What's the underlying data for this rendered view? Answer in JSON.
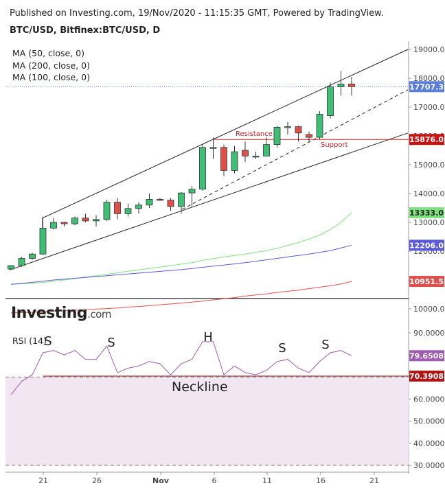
{
  "header": {
    "published": "Published on Investing.com, 19/Nov/2020 - 11:15:35 GMT, Powered by TradingView.",
    "symbol": "BTC/USD, Bitfinex:BTC/USD, D"
  },
  "indicators": {
    "ma50": "MA (50, close, 0)",
    "ma200": "MA (200, close, 0)",
    "ma100": "MA (100, close, 0)"
  },
  "logo": {
    "brand": "Investing",
    "suffix": ".com"
  },
  "rsi": {
    "title": "RSI (14)"
  },
  "colors": {
    "up": "#3fbf74",
    "down": "#e0504a",
    "ma50": "#7fe07f",
    "ma200": "#5a5ad8",
    "ma100": "#e0504a",
    "rsi": "#a05ab0",
    "resistance": "#cc2222",
    "last_price": "#5b7fd9",
    "support_box": "#cc1111"
  },
  "chart_data": {
    "type": "candlestick",
    "x_ticks": [
      "21",
      "26",
      "Nov",
      "6",
      "11",
      "16",
      "21"
    ],
    "price_axis": [
      "19000.0",
      "18000.0",
      "17000.0",
      "16000.0",
      "15000.0",
      "14000.0",
      "13000.0",
      "12000.0",
      "11000.0",
      "10000.0"
    ],
    "rsi_axis": [
      "90.0000",
      "80.0000",
      "70.0000",
      "60.0000",
      "50.0000",
      "40.0000",
      "30.0000"
    ],
    "candles": [
      {
        "day": "Oct 18",
        "o": 11380,
        "h": 11480,
        "l": 11350,
        "c": 11500
      },
      {
        "day": "Oct 19",
        "o": 11500,
        "h": 11800,
        "l": 11450,
        "c": 11750
      },
      {
        "day": "Oct 20",
        "o": 11750,
        "h": 11950,
        "l": 11700,
        "c": 11900
      },
      {
        "day": "Oct 21",
        "o": 11900,
        "h": 13200,
        "l": 11880,
        "c": 12800
      },
      {
        "day": "Oct 22",
        "o": 12800,
        "h": 13150,
        "l": 12750,
        "c": 13000
      },
      {
        "day": "Oct 23",
        "o": 13000,
        "h": 13020,
        "l": 12850,
        "c": 12950
      },
      {
        "day": "Oct 24",
        "o": 12950,
        "h": 13200,
        "l": 12900,
        "c": 13150
      },
      {
        "day": "Oct 25",
        "o": 13150,
        "h": 13300,
        "l": 13000,
        "c": 13050
      },
      {
        "day": "Oct 26",
        "o": 13050,
        "h": 13250,
        "l": 12850,
        "c": 13100
      },
      {
        "day": "Oct 27",
        "o": 13100,
        "h": 13780,
        "l": 13050,
        "c": 13700
      },
      {
        "day": "Oct 28",
        "o": 13700,
        "h": 13850,
        "l": 13100,
        "c": 13300
      },
      {
        "day": "Oct 29",
        "o": 13300,
        "h": 13650,
        "l": 13200,
        "c": 13480
      },
      {
        "day": "Oct 30",
        "o": 13480,
        "h": 13700,
        "l": 13300,
        "c": 13600
      },
      {
        "day": "Oct 31",
        "o": 13600,
        "h": 14000,
        "l": 13500,
        "c": 13800
      },
      {
        "day": "Nov 1",
        "o": 13800,
        "h": 13850,
        "l": 13750,
        "c": 13770
      },
      {
        "day": "Nov 2",
        "o": 13770,
        "h": 13850,
        "l": 13400,
        "c": 13550
      },
      {
        "day": "Nov 3",
        "o": 13550,
        "h": 14050,
        "l": 13300,
        "c": 14020
      },
      {
        "day": "Nov 4",
        "o": 14020,
        "h": 14250,
        "l": 13550,
        "c": 14150
      },
      {
        "day": "Nov 5",
        "o": 14150,
        "h": 15700,
        "l": 14100,
        "c": 15600
      },
      {
        "day": "Nov 6",
        "o": 15600,
        "h": 15950,
        "l": 15200,
        "c": 15600
      },
      {
        "day": "Nov 7",
        "o": 15600,
        "h": 15700,
        "l": 14600,
        "c": 14800
      },
      {
        "day": "Nov 8",
        "o": 14800,
        "h": 15650,
        "l": 14700,
        "c": 15450
      },
      {
        "day": "Nov 9",
        "o": 15500,
        "h": 15800,
        "l": 15100,
        "c": 15300
      },
      {
        "day": "Nov 10",
        "o": 15300,
        "h": 15450,
        "l": 15200,
        "c": 15300
      },
      {
        "day": "Nov 11",
        "o": 15300,
        "h": 15950,
        "l": 15300,
        "c": 15700
      },
      {
        "day": "Nov 12",
        "o": 15700,
        "h": 16350,
        "l": 15600,
        "c": 16300
      },
      {
        "day": "Nov 13",
        "o": 16300,
        "h": 16480,
        "l": 16050,
        "c": 16320
      },
      {
        "day": "Nov 14",
        "o": 16320,
        "h": 16350,
        "l": 15800,
        "c": 16100
      },
      {
        "day": "Nov 15",
        "o": 16050,
        "h": 16150,
        "l": 15800,
        "c": 15950
      },
      {
        "day": "Nov 16",
        "o": 15950,
        "h": 16850,
        "l": 15880,
        "c": 16750
      },
      {
        "day": "Nov 17",
        "o": 16700,
        "h": 17850,
        "l": 16600,
        "c": 17700
      },
      {
        "day": "Nov 18",
        "o": 17700,
        "h": 18250,
        "l": 17400,
        "c": 17800
      },
      {
        "day": "Nov 19",
        "o": 17800,
        "h": 18050,
        "l": 17400,
        "c": 17707
      }
    ],
    "ma50": [
      10850,
      10870,
      10890,
      10910,
      10960,
      11000,
      11050,
      11100,
      11150,
      11200,
      11250,
      11300,
      11350,
      11400,
      11450,
      11500,
      11550,
      11600,
      11680,
      11740,
      11800,
      11850,
      11900,
      11960,
      12020,
      12100,
      12200,
      12300,
      12420,
      12560,
      12750,
      13000,
      13333
    ],
    "ma200": [
      10850,
      10880,
      10920,
      10960,
      11000,
      11030,
      11060,
      11090,
      11120,
      11150,
      11180,
      11210,
      11240,
      11270,
      11300,
      11330,
      11360,
      11400,
      11440,
      11480,
      11520,
      11560,
      11600,
      11650,
      11700,
      11750,
      11800,
      11850,
      11900,
      11960,
      12020,
      12110,
      12206
    ],
    "ma100": [
      9860,
      9870,
      9880,
      9900,
      9920,
      9930,
      9950,
      9970,
      9990,
      10010,
      10030,
      10060,
      10080,
      10110,
      10140,
      10170,
      10200,
      10230,
      10270,
      10310,
      10350,
      10390,
      10440,
      10480,
      10520,
      10570,
      10610,
      10650,
      10700,
      10750,
      10800,
      10860,
      10951.5
    ],
    "rsi_values": [
      62,
      68,
      71,
      81,
      82,
      80,
      82,
      78,
      78,
      84,
      72,
      74,
      75,
      77,
      76,
      71,
      76,
      78,
      86,
      86,
      71,
      75,
      72,
      71,
      73,
      77,
      78,
      74,
      72,
      77,
      81,
      82,
      79.65
    ],
    "labels": {
      "last_price": "17707.3",
      "support_level": "15876.0",
      "ma50_last": "13333.0",
      "ma200_last": "12206.0",
      "ma100_last": "10951.5",
      "rsi_last": "79.6508",
      "neckline_level": "70.3908",
      "resistance": "Resistance",
      "support": "Support",
      "neckline": "Neckline",
      "hs": [
        "S",
        "S",
        "H",
        "S",
        "S"
      ]
    },
    "levels": {
      "support": 15876,
      "neckline": 70.3908
    }
  }
}
